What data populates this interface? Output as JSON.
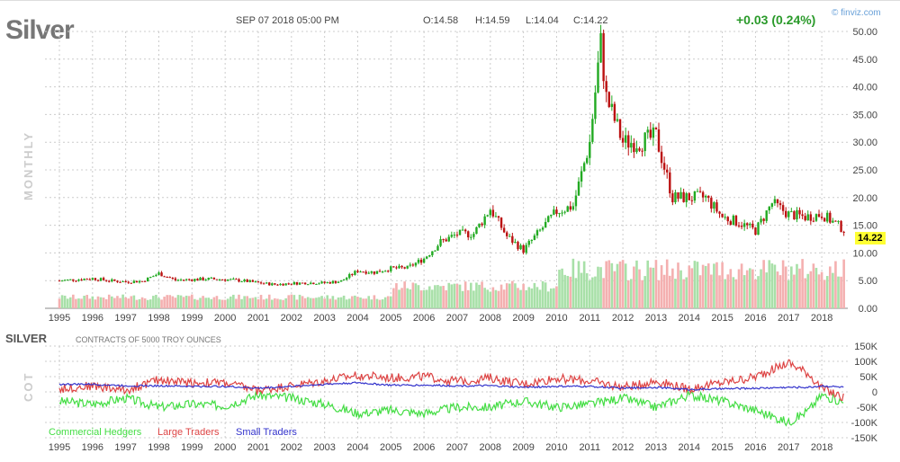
{
  "header": {
    "symbol": "Silver",
    "date": "SEP 07 2018 05:00 PM",
    "open": "O:14.58",
    "high": "H:14.59",
    "low": "L:14.04",
    "close": "C:14.22",
    "change": "+0.03 (0.24%)",
    "brand": "© finviz.com",
    "period": "MONTHLY",
    "last_price": "14.22"
  },
  "cot": {
    "title": "SILVER",
    "subtitle": "CONTRACTS OF 5000 TROY OUNCES",
    "side_label": "COT",
    "legend": [
      "Commercial Hedgers",
      "Large Traders",
      "Small Traders"
    ]
  },
  "colors": {
    "up": "#22aa22",
    "down": "#bb1111",
    "commercial": "#44dd44",
    "large": "#dd4444",
    "small": "#3333cc",
    "vol_up": "#a8e0a8",
    "vol_down": "#f4b0b0"
  },
  "chart_data": [
    {
      "type": "candlestick",
      "title": "Silver",
      "xlabel": "",
      "ylabel": "",
      "ylim": [
        0,
        50
      ],
      "yticks": [
        "0.00",
        "5.00",
        "10.00",
        "15.00",
        "20.00",
        "25.00",
        "30.00",
        "35.00",
        "40.00",
        "45.00",
        "50.00"
      ],
      "xticks": [
        "1995",
        "1996",
        "1997",
        "1998",
        "1999",
        "2000",
        "2001",
        "2002",
        "2003",
        "2004",
        "2005",
        "2006",
        "2007",
        "2008",
        "2009",
        "2010",
        "2011",
        "2012",
        "2013",
        "2014",
        "2015",
        "2016",
        "2017",
        "2018"
      ],
      "x_half_years": [
        1995.0,
        1995.5,
        1996.0,
        1996.5,
        1997.0,
        1997.5,
        1998.0,
        1998.5,
        1999.0,
        1999.5,
        2000.0,
        2000.5,
        2001.0,
        2001.5,
        2002.0,
        2002.5,
        2003.0,
        2003.5,
        2004.0,
        2004.5,
        2005.0,
        2005.5,
        2006.0,
        2006.5,
        2007.0,
        2007.5,
        2008.0,
        2008.5,
        2009.0,
        2009.5,
        2010.0,
        2010.5,
        2011.0,
        2011.33,
        2011.5,
        2012.0,
        2012.5,
        2013.0,
        2013.5,
        2014.0,
        2014.5,
        2015.0,
        2015.5,
        2016.0,
        2016.5,
        2017.0,
        2017.5,
        2018.0,
        2018.67
      ],
      "close_approx": [
        5.0,
        5.2,
        5.4,
        5.0,
        4.8,
        4.9,
        6.3,
        5.1,
        5.2,
        5.3,
        5.2,
        5.0,
        4.6,
        4.3,
        4.5,
        4.6,
        4.6,
        4.9,
        6.8,
        6.5,
        7.2,
        7.3,
        9.0,
        12.0,
        13.4,
        13.5,
        18.0,
        13.0,
        10.5,
        14.0,
        17.5,
        18.5,
        30.0,
        48.0,
        38.0,
        30.0,
        30.0,
        31.0,
        20.0,
        20.0,
        20.0,
        16.5,
        15.5,
        14.0,
        19.0,
        17.0,
        16.5,
        17.0,
        14.22
      ]
    },
    {
      "type": "line",
      "title": "SILVER COT",
      "ylim": [
        -150,
        150
      ],
      "yunit": "K",
      "yticks": [
        "150K",
        "100K",
        "50K",
        "0",
        "-50K",
        "-100K",
        "-150K"
      ],
      "x": [
        1995,
        1996,
        1997,
        1998,
        1999,
        2000,
        2001,
        2002,
        2003,
        2004,
        2005,
        2006,
        2007,
        2008,
        2009,
        2010,
        2011,
        2012,
        2013,
        2014,
        2015,
        2016,
        2017,
        2017.6,
        2018,
        2018.67
      ],
      "series": [
        {
          "name": "Commercial Hedgers",
          "values": [
            -30,
            -40,
            -20,
            -50,
            -40,
            -45,
            -10,
            -20,
            -40,
            -70,
            -60,
            -70,
            -50,
            -50,
            -30,
            -50,
            -40,
            -20,
            -50,
            -10,
            -30,
            -60,
            -100,
            -60,
            -10,
            -35
          ]
        },
        {
          "name": "Large Traders",
          "values": [
            10,
            20,
            5,
            40,
            30,
            30,
            5,
            20,
            35,
            55,
            45,
            50,
            35,
            45,
            25,
            45,
            35,
            15,
            35,
            10,
            30,
            50,
            95,
            60,
            10,
            -20
          ]
        },
        {
          "name": "Small Traders",
          "values": [
            25,
            25,
            20,
            20,
            18,
            18,
            12,
            18,
            25,
            30,
            22,
            22,
            20,
            20,
            15,
            18,
            18,
            12,
            15,
            8,
            10,
            12,
            15,
            15,
            20,
            15
          ]
        }
      ]
    }
  ]
}
